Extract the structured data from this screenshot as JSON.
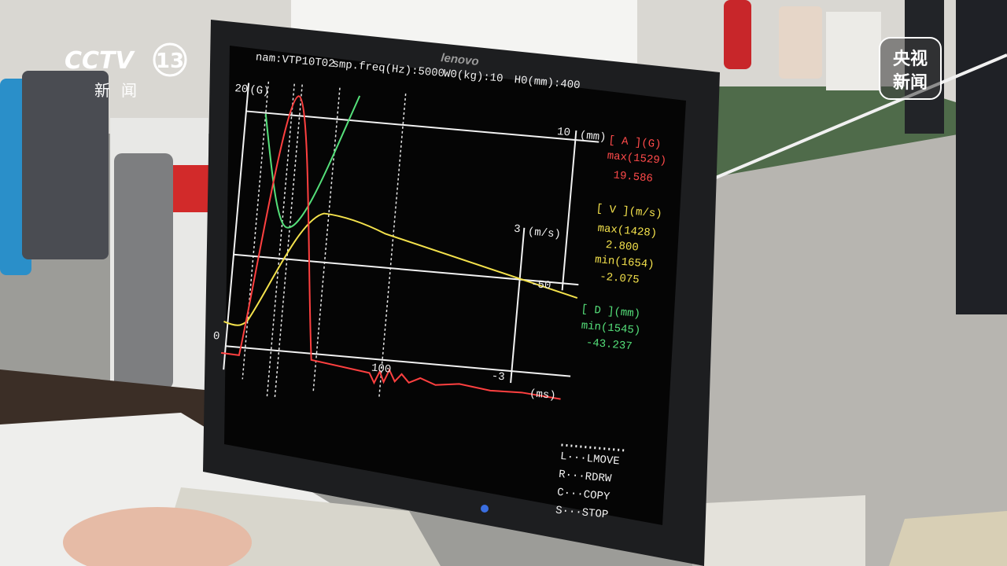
{
  "logo": {
    "channel": "CCTV",
    "number": "13",
    "sub": "新闻"
  },
  "watermark": [
    "央视",
    "新闻"
  ],
  "monitor": {
    "brand": "lenovo",
    "header": [
      "nam:VTP10T02",
      "smp.freq(Hz):5000",
      "W0(kg):10",
      "H0(mm):400"
    ],
    "axes": {
      "g_max": "20",
      "g_unit": "(G)",
      "g_zero": "0",
      "d_max": "10",
      "d_unit": "(mm)",
      "v_max": "3",
      "v_unit": "(m/s)",
      "d_min": "-50",
      "v_min": "-3",
      "t_tick": "100",
      "t_unit": "(ms)"
    },
    "readouts": [
      {
        "title": "[ A ](G)",
        "lines": [
          "max(1529)",
          "19.586"
        ]
      },
      {
        "title": "[ V ](m/s)",
        "lines": [
          "max(1428)",
          "2.800",
          "min(1654)",
          "-2.075"
        ]
      },
      {
        "title": "[ D ](mm)",
        "lines": [
          "min(1545)",
          "-43.237"
        ]
      }
    ],
    "menu": [
      "L···LMOVE",
      "R···RDRW",
      "C···COPY",
      "S···STOP"
    ]
  }
}
